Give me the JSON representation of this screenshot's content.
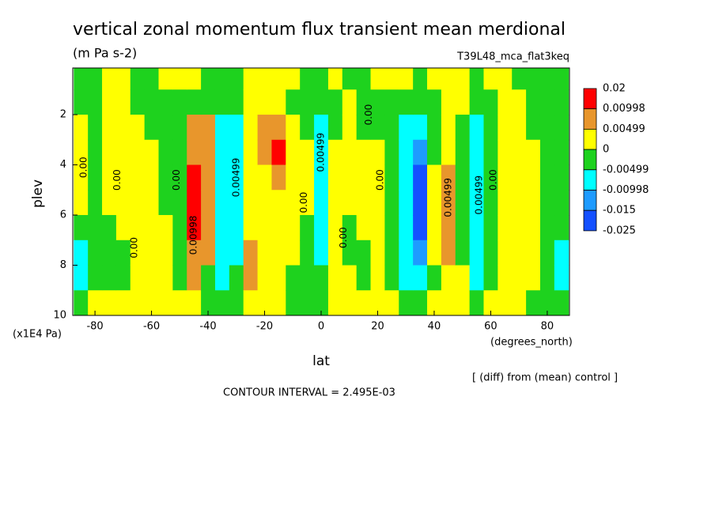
{
  "chart_data": {
    "type": "contour",
    "title": "vertical zonal momentum flux transient mean merdional",
    "subtitle": "(m Pa s-2)",
    "run_label": "T39L48_mca_flat3keq",
    "x_label": "lat",
    "y_label": "plev",
    "x_units": "(degrees_north)",
    "y_units": "(x1E4 Pa)",
    "note": "[ (diff) from (mean) control ]",
    "contour_interval": "CONTOUR INTERVAL = 2.495E-03",
    "xlim": [
      -87.86,
      87.86
    ],
    "ylim": [
      10,
      0.14
    ],
    "xticks": [
      -80,
      -60,
      -40,
      -20,
      0,
      20,
      40,
      60,
      80
    ],
    "yticks": [
      2,
      4,
      6,
      8,
      10
    ],
    "levels": [
      0.02,
      0.00998,
      0.00499,
      0,
      -0.00499,
      -0.00998,
      -0.015,
      -0.025
    ],
    "colors": [
      "#ff0000",
      "#e8962c",
      "#ffff00",
      "#1ed21e",
      "#00ffff",
      "#1e9bff",
      "#1450ff"
    ],
    "x": [
      -85,
      -80,
      -75,
      -70,
      -65,
      -60,
      -55,
      -50,
      -45,
      -40,
      -35,
      -30,
      -25,
      -20,
      -15,
      -10,
      -5,
      0,
      5,
      10,
      15,
      20,
      25,
      30,
      35,
      40,
      45,
      50,
      55,
      60,
      65,
      70,
      75,
      80,
      85
    ],
    "y": [
      0.5,
      1.5,
      2.5,
      3.5,
      4.5,
      5.5,
      6.5,
      7.5,
      8.5,
      9.5
    ],
    "z": [
      [
        -0.002,
        -0.002,
        0.002,
        0.002,
        0.002,
        0.002,
        -0.002,
        -0.007,
        -0.007,
        -0.002
      ],
      [
        -0.002,
        -0.002,
        -0.002,
        -0.002,
        -0.002,
        -0.002,
        -0.002,
        -0.002,
        -0.002,
        0.002
      ],
      [
        0.002,
        0.002,
        0.002,
        0.002,
        0.002,
        0.002,
        -0.002,
        -0.002,
        -0.002,
        0.002
      ],
      [
        0.002,
        0.002,
        0.002,
        0.002,
        0.002,
        0.002,
        0.002,
        -0.002,
        -0.002,
        0.002
      ],
      [
        -0.002,
        -0.002,
        0.002,
        0.002,
        0.002,
        0.002,
        0.002,
        0.002,
        0.002,
        0.002
      ],
      [
        -0.002,
        -0.002,
        -0.002,
        0.002,
        0.002,
        0.002,
        0.002,
        0.002,
        0.002,
        0.002
      ],
      [
        0.002,
        -0.002,
        -0.002,
        -0.002,
        -0.002,
        -0.002,
        0.002,
        0.002,
        0.002,
        0.002
      ],
      [
        0.002,
        -0.002,
        -0.002,
        -0.002,
        -0.002,
        -0.002,
        -0.002,
        -0.002,
        -0.002,
        0.002
      ],
      [
        0.002,
        -0.002,
        0.007,
        0.007,
        0.012,
        0.012,
        0.012,
        0.007,
        0.007,
        0.002
      ],
      [
        -0.002,
        -0.002,
        0.007,
        0.007,
        0.007,
        0.007,
        0.007,
        0.007,
        -0.002,
        -0.002
      ],
      [
        -0.002,
        -0.002,
        -0.007,
        -0.007,
        -0.007,
        -0.007,
        -0.007,
        -0.007,
        -0.007,
        -0.002
      ],
      [
        -0.002,
        -0.002,
        -0.007,
        -0.007,
        -0.007,
        -0.007,
        -0.007,
        -0.007,
        -0.002,
        -0.002
      ],
      [
        0.002,
        0.002,
        0.002,
        0.002,
        0.002,
        0.002,
        0.002,
        0.007,
        0.007,
        0.002
      ],
      [
        0.002,
        0.002,
        0.007,
        0.007,
        0.002,
        0.002,
        0.002,
        0.002,
        0.002,
        0.002
      ],
      [
        0.002,
        0.002,
        0.007,
        0.012,
        0.007,
        0.002,
        0.002,
        0.002,
        0.002,
        0.002
      ],
      [
        0.002,
        -0.002,
        0.002,
        0.002,
        0.002,
        0.002,
        0.002,
        0.002,
        -0.002,
        -0.002
      ],
      [
        -0.002,
        -0.002,
        -0.002,
        0.002,
        0.002,
        0.002,
        -0.002,
        -0.002,
        -0.002,
        -0.002
      ],
      [
        -0.002,
        -0.002,
        -0.007,
        -0.007,
        -0.007,
        -0.007,
        -0.007,
        -0.007,
        -0.002,
        -0.002
      ],
      [
        0.002,
        -0.002,
        -0.002,
        0.002,
        0.002,
        0.002,
        0.002,
        0.002,
        0.002,
        0.002
      ],
      [
        -0.002,
        0.002,
        0.002,
        0.002,
        0.002,
        0.002,
        -0.002,
        -0.002,
        0.002,
        0.002
      ],
      [
        -0.002,
        -0.002,
        -0.002,
        0.002,
        0.002,
        0.002,
        0.002,
        -0.002,
        -0.002,
        0.002
      ],
      [
        0.002,
        -0.002,
        -0.002,
        0.002,
        0.002,
        0.002,
        0.002,
        0.002,
        0.002,
        0.002
      ],
      [
        0.002,
        -0.002,
        -0.002,
        -0.002,
        -0.002,
        -0.002,
        -0.002,
        -0.002,
        -0.002,
        0.002
      ],
      [
        0.002,
        -0.002,
        -0.007,
        -0.007,
        -0.007,
        -0.007,
        -0.007,
        -0.007,
        -0.007,
        -0.002
      ],
      [
        -0.002,
        -0.002,
        -0.007,
        -0.012,
        -0.018,
        -0.018,
        -0.018,
        -0.012,
        -0.007,
        -0.002
      ],
      [
        0.002,
        -0.002,
        -0.002,
        -0.002,
        0.002,
        0.002,
        0.002,
        0.002,
        -0.002,
        0.002
      ],
      [
        0.002,
        0.002,
        0.002,
        0.002,
        0.007,
        0.007,
        0.007,
        0.007,
        0.002,
        0.002
      ],
      [
        0.002,
        0.002,
        -0.002,
        -0.002,
        -0.002,
        -0.002,
        -0.002,
        -0.002,
        0.002,
        0.002
      ],
      [
        -0.002,
        -0.002,
        -0.007,
        -0.007,
        -0.007,
        -0.007,
        -0.007,
        -0.007,
        -0.007,
        -0.002
      ],
      [
        0.002,
        -0.002,
        -0.002,
        -0.002,
        -0.002,
        -0.002,
        -0.002,
        -0.002,
        -0.002,
        0.002
      ],
      [
        0.002,
        0.002,
        0.002,
        0.002,
        0.002,
        0.002,
        0.002,
        0.002,
        0.002,
        0.002
      ],
      [
        -0.002,
        0.002,
        0.002,
        0.002,
        0.002,
        0.002,
        0.002,
        0.002,
        0.002,
        0.002
      ],
      [
        -0.002,
        -0.002,
        -0.002,
        0.002,
        0.002,
        0.002,
        0.002,
        0.002,
        0.002,
        -0.002
      ],
      [
        -0.002,
        -0.002,
        -0.002,
        -0.002,
        -0.002,
        -0.002,
        -0.002,
        -0.002,
        -0.002,
        -0.002
      ],
      [
        -0.002,
        -0.002,
        -0.002,
        -0.002,
        -0.002,
        -0.002,
        -0.002,
        -0.007,
        -0.007,
        -0.002
      ]
    ],
    "contour_labels": [
      {
        "text": "0.00",
        "lat": -84,
        "plev": 4.1
      },
      {
        "text": "0.00",
        "lat": -72,
        "plev": 4.6
      },
      {
        "text": "0.00",
        "lat": -66,
        "plev": 7.3
      },
      {
        "text": "0.00",
        "lat": -51,
        "plev": 4.6
      },
      {
        "text": "0.00998",
        "lat": -45,
        "plev": 6.8
      },
      {
        "text": "0.00499",
        "lat": -30,
        "plev": 4.5
      },
      {
        "text": "0.00",
        "lat": -6,
        "plev": 5.5
      },
      {
        "text": "0.00499",
        "lat": 0,
        "plev": 3.5
      },
      {
        "text": "0.00",
        "lat": 8,
        "plev": 6.9
      },
      {
        "text": "0.00",
        "lat": 17,
        "plev": 2.0
      },
      {
        "text": "0.00",
        "lat": 21,
        "plev": 4.6
      },
      {
        "text": "0.00499",
        "lat": 45,
        "plev": 5.3
      },
      {
        "text": "0.00499",
        "lat": 56,
        "plev": 5.2
      },
      {
        "text": "0.00",
        "lat": 61,
        "plev": 4.6
      }
    ]
  }
}
